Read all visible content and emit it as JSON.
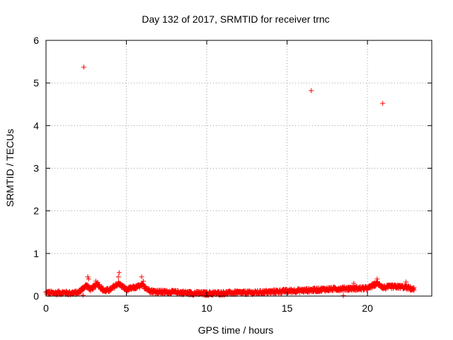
{
  "chart_data": {
    "type": "scatter",
    "title": "Day 132 of 2017, SRMTID for receiver trnc",
    "xlabel": "GPS time / hours",
    "ylabel": "SRMTID / TECUs",
    "xlim": [
      0,
      24
    ],
    "ylim": [
      0,
      6
    ],
    "x_ticks": [
      0,
      5,
      10,
      15,
      20
    ],
    "y_ticks": [
      0,
      1,
      2,
      3,
      4,
      5,
      6
    ],
    "x_tick_labels": [
      "0",
      "5",
      "10",
      "15",
      "20"
    ],
    "y_tick_labels": [
      "0",
      "1",
      "2",
      "3",
      "4",
      "5",
      "6"
    ],
    "grid": true,
    "marker": "plus",
    "series": [
      {
        "name": "SRMTID",
        "color": "#ff0000",
        "outliers": [
          {
            "x": 2.35,
            "y": 5.37
          },
          {
            "x": 16.5,
            "y": 4.82
          },
          {
            "x": 20.95,
            "y": 4.52
          }
        ],
        "baseline_profile": [
          {
            "x": 0.0,
            "y": 0.08
          },
          {
            "x": 0.5,
            "y": 0.07
          },
          {
            "x": 1.0,
            "y": 0.08
          },
          {
            "x": 1.5,
            "y": 0.07
          },
          {
            "x": 2.0,
            "y": 0.08
          },
          {
            "x": 2.5,
            "y": 0.25
          },
          {
            "x": 2.8,
            "y": 0.15
          },
          {
            "x": 3.2,
            "y": 0.3
          },
          {
            "x": 3.6,
            "y": 0.12
          },
          {
            "x": 4.0,
            "y": 0.15
          },
          {
            "x": 4.5,
            "y": 0.3
          },
          {
            "x": 5.0,
            "y": 0.15
          },
          {
            "x": 5.5,
            "y": 0.2
          },
          {
            "x": 6.0,
            "y": 0.25
          },
          {
            "x": 6.5,
            "y": 0.12
          },
          {
            "x": 7.0,
            "y": 0.1
          },
          {
            "x": 8.0,
            "y": 0.09
          },
          {
            "x": 9.0,
            "y": 0.07
          },
          {
            "x": 10.0,
            "y": 0.06
          },
          {
            "x": 11.0,
            "y": 0.07
          },
          {
            "x": 12.0,
            "y": 0.08
          },
          {
            "x": 13.0,
            "y": 0.08
          },
          {
            "x": 14.0,
            "y": 0.1
          },
          {
            "x": 15.0,
            "y": 0.12
          },
          {
            "x": 16.0,
            "y": 0.13
          },
          {
            "x": 17.0,
            "y": 0.15
          },
          {
            "x": 18.0,
            "y": 0.17
          },
          {
            "x": 19.0,
            "y": 0.18
          },
          {
            "x": 20.0,
            "y": 0.18
          },
          {
            "x": 20.6,
            "y": 0.3
          },
          {
            "x": 21.0,
            "y": 0.2
          },
          {
            "x": 21.5,
            "y": 0.22
          },
          {
            "x": 22.0,
            "y": 0.22
          },
          {
            "x": 22.5,
            "y": 0.2
          },
          {
            "x": 22.9,
            "y": 0.15
          }
        ],
        "spikes": [
          {
            "x": 2.6,
            "y": 0.45
          },
          {
            "x": 2.65,
            "y": 0.4
          },
          {
            "x": 3.1,
            "y": 0.35
          },
          {
            "x": 4.55,
            "y": 0.55
          },
          {
            "x": 4.5,
            "y": 0.45
          },
          {
            "x": 5.95,
            "y": 0.45
          },
          {
            "x": 6.05,
            "y": 0.35
          },
          {
            "x": 19.15,
            "y": 0.3
          },
          {
            "x": 20.6,
            "y": 0.4
          },
          {
            "x": 22.4,
            "y": 0.33
          },
          {
            "x": 2.3,
            "y": 0.02
          },
          {
            "x": 18.5,
            "y": 0.01
          }
        ]
      }
    ]
  }
}
